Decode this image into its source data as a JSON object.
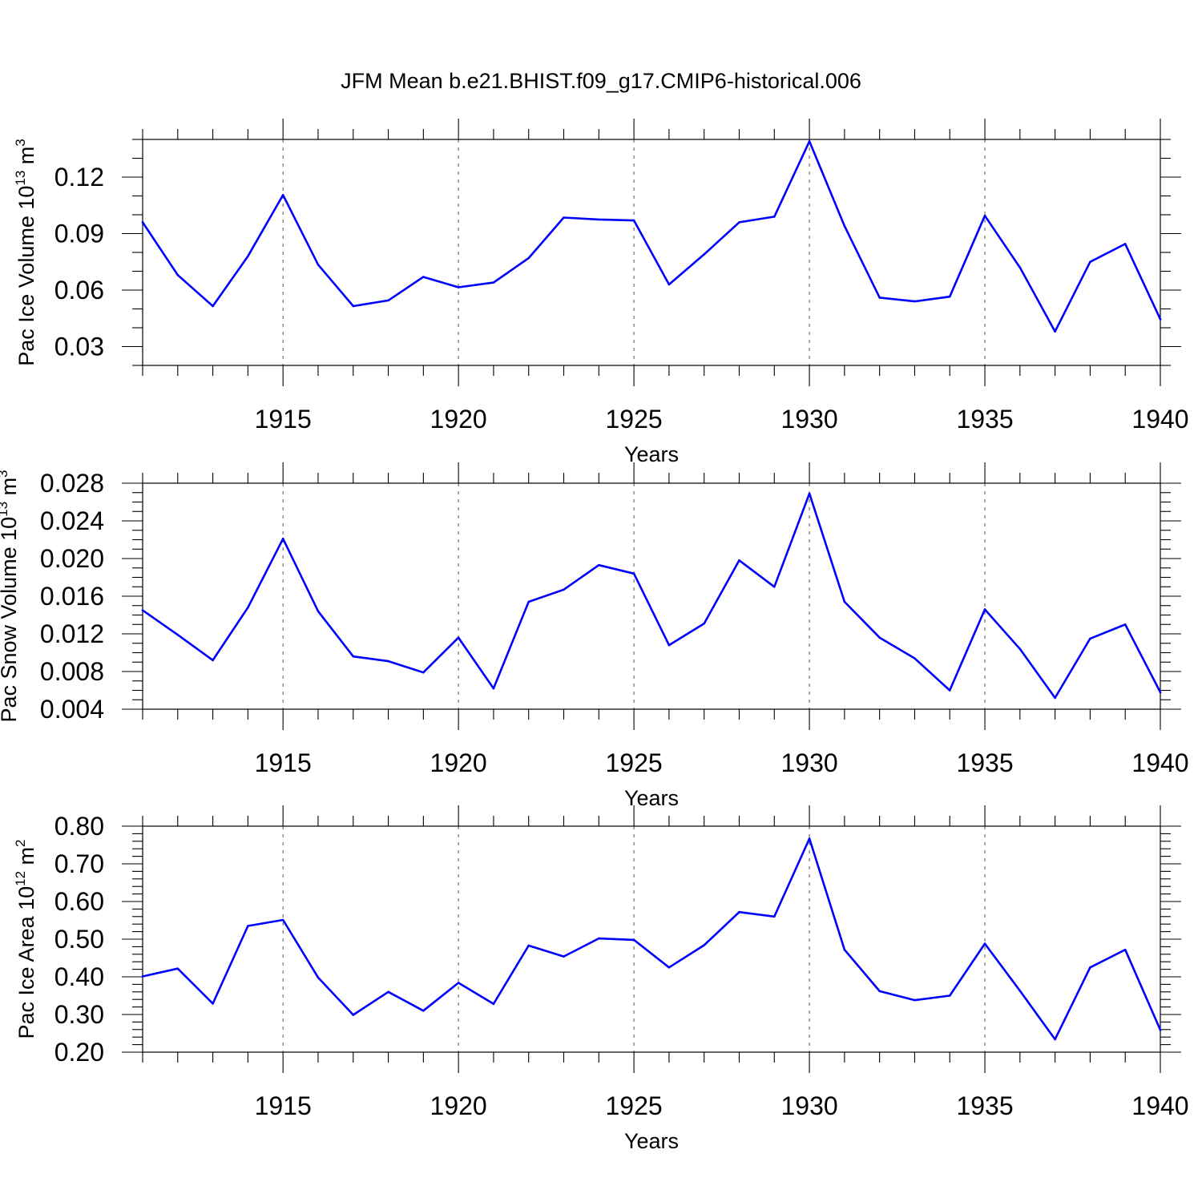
{
  "title": "JFM Mean b.e21.BHIST.f09_g17.CMIP6-historical.006",
  "colors": {
    "line": "#0000ff",
    "frame": "#000000",
    "grid": "#555555"
  },
  "chart_data": [
    {
      "type": "line",
      "ylabel": {
        "main": "Pac Ice Volume 10",
        "sup": "13",
        "unit": " m",
        "unit_sup": "3"
      },
      "xlabel": "Years",
      "xlim": [
        1911,
        1940
      ],
      "ylim": [
        0.02,
        0.14
      ],
      "yticks": [
        0.03,
        0.06,
        0.09,
        0.12
      ],
      "ytick_labels": [
        "0.03",
        "0.06",
        "0.09",
        "0.12"
      ],
      "xticks": [
        1915,
        1920,
        1925,
        1930,
        1935,
        1940
      ],
      "xtick_labels": [
        "1915",
        "1920",
        "1925",
        "1930",
        "1935",
        "1940"
      ],
      "grid": "vertical dashed at labeled years",
      "x": [
        1911,
        1912,
        1913,
        1914,
        1915,
        1916,
        1917,
        1918,
        1919,
        1920,
        1921,
        1922,
        1923,
        1924,
        1925,
        1926,
        1927,
        1928,
        1929,
        1930,
        1931,
        1932,
        1933,
        1934,
        1935,
        1936,
        1937,
        1938,
        1939,
        1940
      ],
      "y": [
        0.096,
        0.068,
        0.0515,
        0.078,
        0.1105,
        0.0735,
        0.0515,
        0.0545,
        0.067,
        0.0615,
        0.064,
        0.077,
        0.0985,
        0.0975,
        0.097,
        0.063,
        0.079,
        0.096,
        0.099,
        0.139,
        0.094,
        0.056,
        0.054,
        0.0565,
        0.0995,
        0.072,
        0.038,
        0.075,
        0.0845,
        0.0445
      ]
    },
    {
      "type": "line",
      "ylabel": {
        "main": "Pac Snow Volume 10",
        "sup": "13",
        "unit": " m",
        "unit_sup": "3"
      },
      "xlabel": "Years",
      "xlim": [
        1911,
        1940
      ],
      "ylim": [
        0.004,
        0.028
      ],
      "yticks": [
        0.004,
        0.008,
        0.012,
        0.016,
        0.02,
        0.024,
        0.028
      ],
      "ytick_labels": [
        "0.004",
        "0.008",
        "0.012",
        "0.016",
        "0.020",
        "0.024",
        "0.028"
      ],
      "xticks": [
        1915,
        1920,
        1925,
        1930,
        1935,
        1940
      ],
      "xtick_labels": [
        "1915",
        "1920",
        "1925",
        "1930",
        "1935",
        "1940"
      ],
      "grid": "vertical dashed at labeled years",
      "x": [
        1911,
        1912,
        1913,
        1914,
        1915,
        1916,
        1917,
        1918,
        1919,
        1920,
        1921,
        1922,
        1923,
        1924,
        1925,
        1926,
        1927,
        1928,
        1929,
        1930,
        1931,
        1932,
        1933,
        1934,
        1935,
        1936,
        1937,
        1938,
        1939,
        1940
      ],
      "y": [
        0.0145,
        0.0119,
        0.0092,
        0.0148,
        0.0221,
        0.0144,
        0.0096,
        0.0091,
        0.0079,
        0.0116,
        0.0062,
        0.0154,
        0.0167,
        0.0193,
        0.0184,
        0.0108,
        0.0131,
        0.0198,
        0.017,
        0.0269,
        0.0154,
        0.0116,
        0.0094,
        0.006,
        0.0146,
        0.0104,
        0.0052,
        0.0115,
        0.013,
        0.0058
      ]
    },
    {
      "type": "line",
      "ylabel": {
        "main": "Pac Ice Area 10",
        "sup": "12",
        "unit": " m",
        "unit_sup": "2"
      },
      "xlabel": "Years",
      "xlim": [
        1911,
        1940
      ],
      "ylim": [
        0.2,
        0.8
      ],
      "yticks": [
        0.2,
        0.3,
        0.4,
        0.5,
        0.6,
        0.7,
        0.8
      ],
      "ytick_labels": [
        "0.20",
        "0.30",
        "0.40",
        "0.50",
        "0.60",
        "0.70",
        "0.80"
      ],
      "xticks": [
        1915,
        1920,
        1925,
        1930,
        1935,
        1940
      ],
      "xtick_labels": [
        "1915",
        "1920",
        "1925",
        "1930",
        "1935",
        "1940"
      ],
      "grid": "vertical dashed at labeled years",
      "x": [
        1911,
        1912,
        1913,
        1914,
        1915,
        1916,
        1917,
        1918,
        1919,
        1920,
        1921,
        1922,
        1923,
        1924,
        1925,
        1926,
        1927,
        1928,
        1929,
        1930,
        1931,
        1932,
        1933,
        1934,
        1935,
        1936,
        1937,
        1938,
        1939,
        1940
      ],
      "y": [
        0.401,
        0.422,
        0.329,
        0.535,
        0.551,
        0.398,
        0.299,
        0.36,
        0.31,
        0.384,
        0.328,
        0.483,
        0.454,
        0.502,
        0.498,
        0.425,
        0.484,
        0.572,
        0.56,
        0.767,
        0.472,
        0.362,
        0.338,
        0.35,
        0.488,
        0.363,
        0.234,
        0.425,
        0.472,
        0.259
      ]
    }
  ]
}
